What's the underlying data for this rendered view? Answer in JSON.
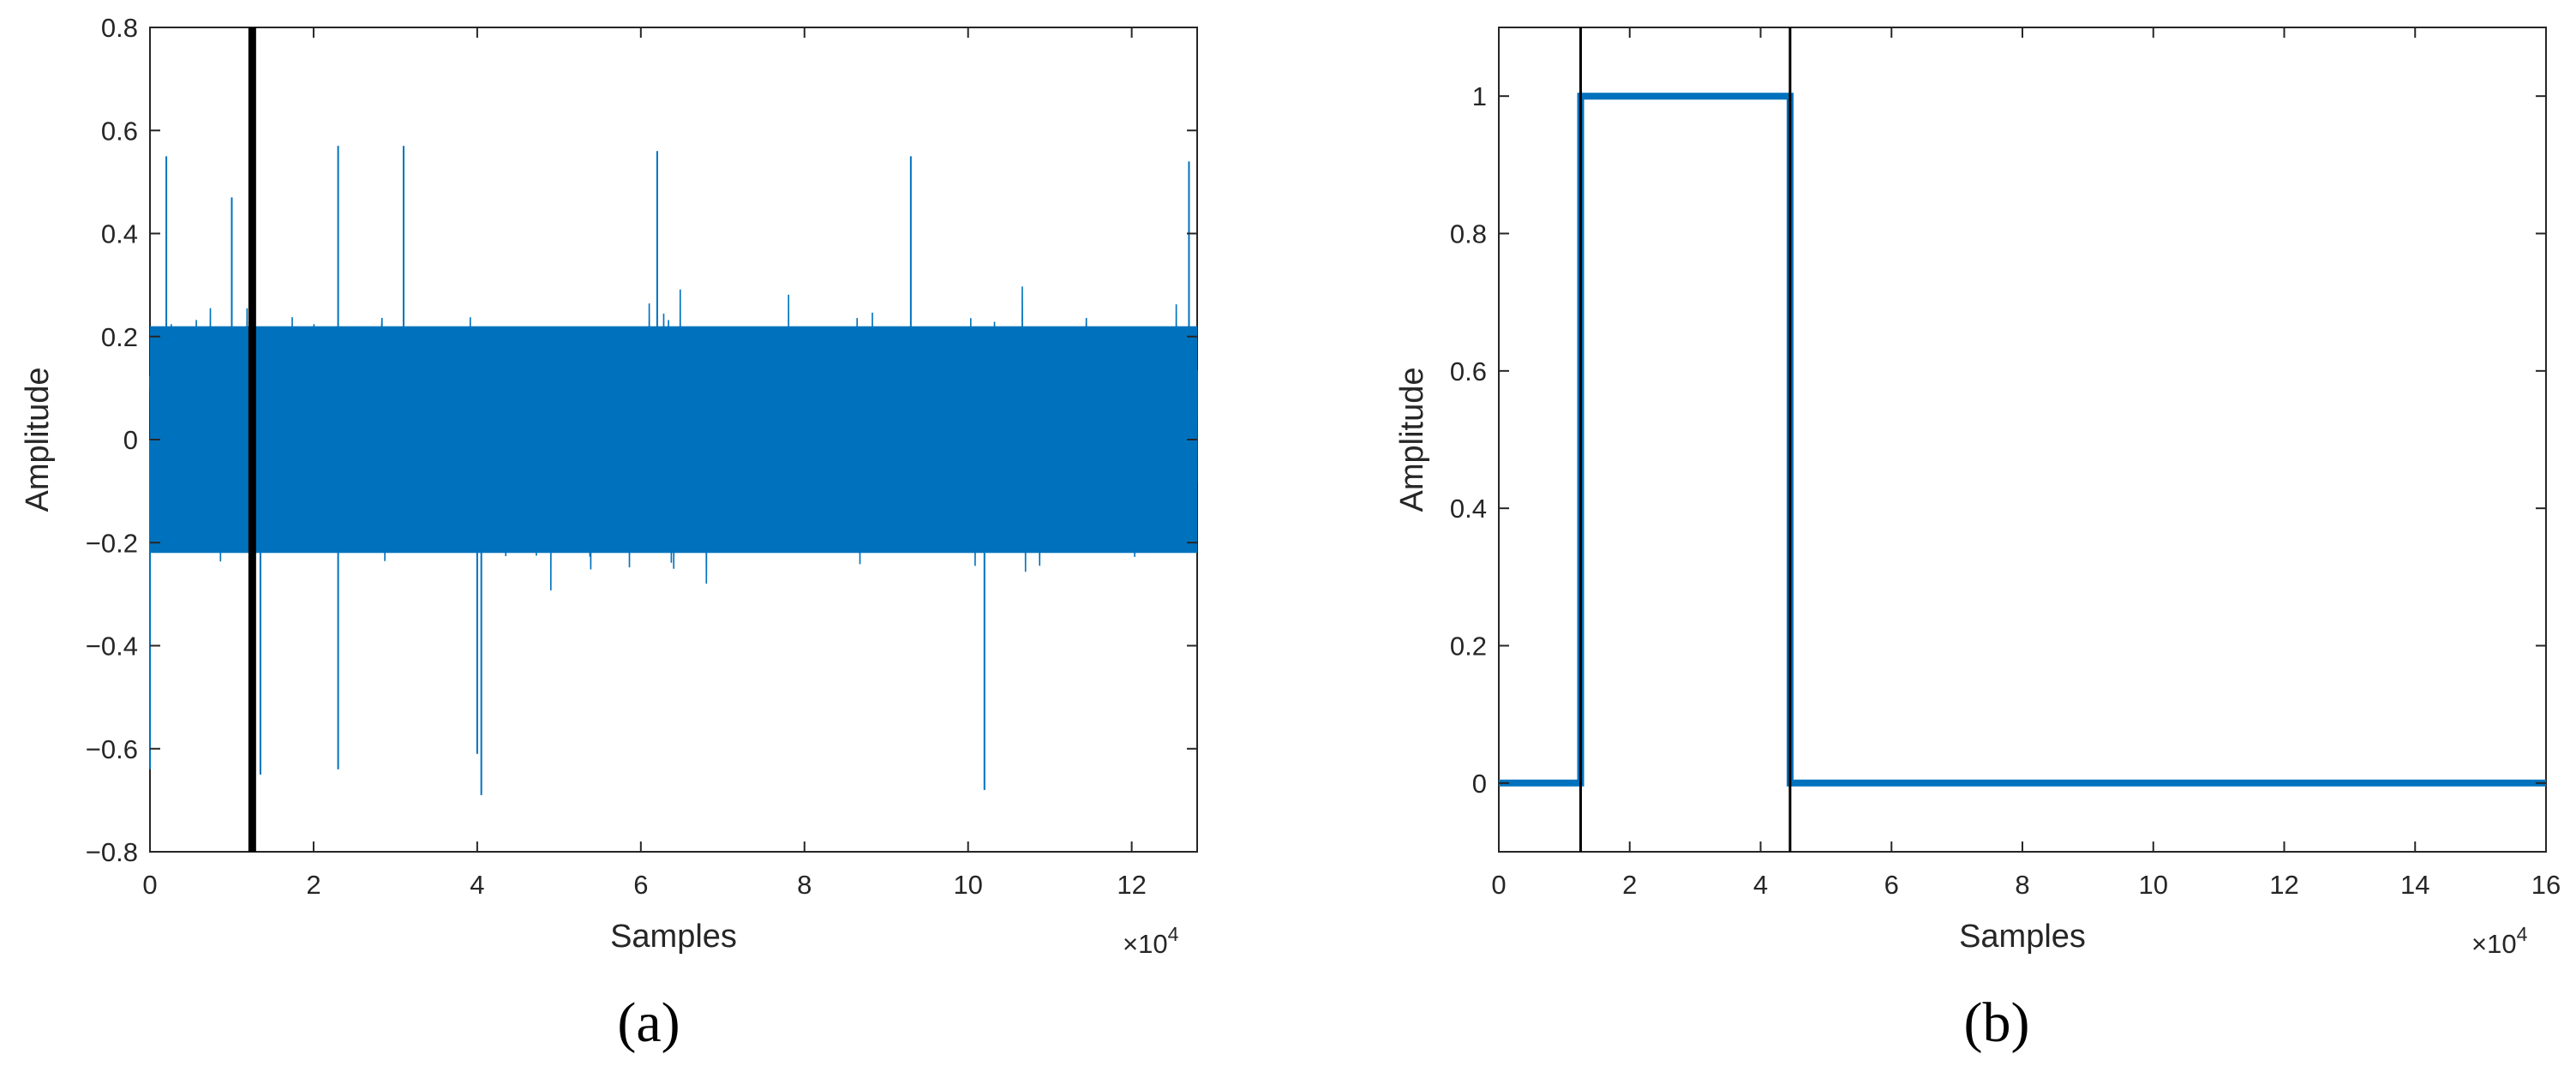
{
  "chart_data": [
    {
      "type": "line",
      "panel_label": "(a)",
      "xlabel": "Samples",
      "ylabel": "Amplitude",
      "x_multiplier": "×10",
      "x_multiplier_exp": "4",
      "xlim": [
        0,
        12.8
      ],
      "ylim": [
        -0.8,
        0.8
      ],
      "xticks": [
        0,
        2,
        4,
        6,
        8,
        10,
        12
      ],
      "xtick_labels": [
        "0",
        "2",
        "4",
        "6",
        "8",
        "10",
        "12"
      ],
      "yticks": [
        -0.8,
        -0.6,
        -0.4,
        -0.2,
        0,
        0.2,
        0.4,
        0.6,
        0.8
      ],
      "ytick_labels": [
        "−0.8",
        "−0.6",
        "−0.4",
        "−0.2",
        "0",
        "0.2",
        "0.4",
        "0.6",
        "0.8"
      ],
      "series": [
        {
          "style": "noise",
          "color": "#0072BD",
          "x_range": [
            0,
            12.8
          ],
          "core_amplitude": 0.22,
          "peak_values": [
            {
              "x": 0.2,
              "y": 0.55
            },
            {
              "x": 1.0,
              "y": 0.47
            },
            {
              "x": 2.3,
              "y": 0.57
            },
            {
              "x": 3.1,
              "y": 0.57
            },
            {
              "x": 6.2,
              "y": 0.56
            },
            {
              "x": 9.3,
              "y": 0.55
            },
            {
              "x": 12.7,
              "y": 0.54
            },
            {
              "x": 4.05,
              "y": -0.69
            },
            {
              "x": 10.2,
              "y": -0.68
            },
            {
              "x": 1.35,
              "y": -0.65
            },
            {
              "x": 2.3,
              "y": -0.64
            },
            {
              "x": 4.0,
              "y": -0.61
            },
            {
              "x": 0.0,
              "y": -0.64
            }
          ]
        }
      ],
      "vlines": [
        {
          "x": 1.25,
          "color": "#000000",
          "weight": "thick"
        }
      ]
    },
    {
      "type": "line",
      "panel_label": "(b)",
      "xlabel": "Samples",
      "ylabel": "Amplitude",
      "x_multiplier": "×10",
      "x_multiplier_exp": "4",
      "xlim": [
        0,
        16
      ],
      "ylim": [
        -0.1,
        1.1
      ],
      "xticks": [
        0,
        2,
        4,
        6,
        8,
        10,
        12,
        14,
        16
      ],
      "xtick_labels": [
        "0",
        "2",
        "4",
        "6",
        "8",
        "10",
        "12",
        "14",
        "16"
      ],
      "yticks": [
        0,
        0.2,
        0.4,
        0.6,
        0.8,
        1
      ],
      "ytick_labels": [
        "0",
        "0.2",
        "0.4",
        "0.6",
        "0.8",
        "1"
      ],
      "series": [
        {
          "style": "step",
          "color": "#0072BD",
          "x": [
            0,
            1.25,
            1.25,
            4.45,
            4.45,
            16
          ],
          "y": [
            0,
            0,
            1,
            1,
            0,
            0
          ]
        }
      ],
      "vlines": [
        {
          "x": 1.25,
          "color": "#000000",
          "weight": "thin"
        },
        {
          "x": 4.45,
          "color": "#000000",
          "weight": "thin"
        }
      ]
    }
  ]
}
